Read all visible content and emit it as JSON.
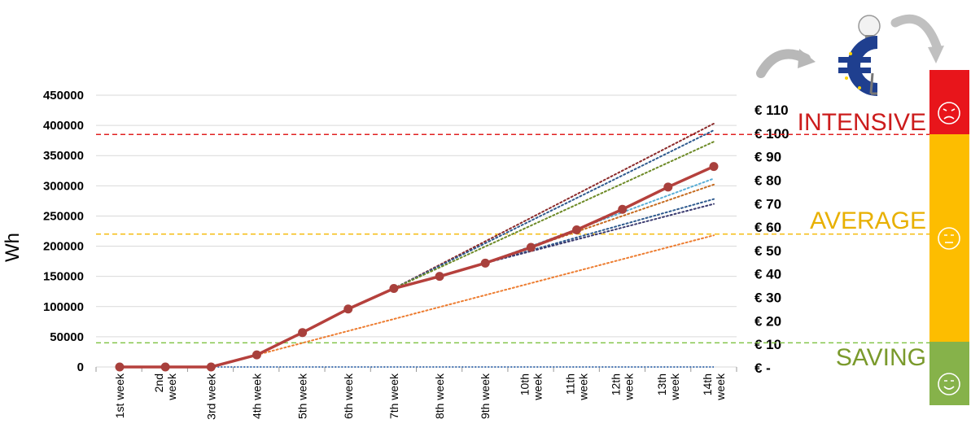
{
  "chart_data": {
    "type": "line",
    "ylabel": "Wh",
    "xlabel": "",
    "ylim": [
      0,
      450000
    ],
    "y_ticks": [
      "450000",
      "400000",
      "350000",
      "300000",
      "250000",
      "200000",
      "150000",
      "100000",
      "50000",
      "0"
    ],
    "categories": [
      "1st week",
      "2nd week",
      "3rd week",
      "4th week",
      "5th week",
      "6th week",
      "7th week",
      "8th week",
      "9th week",
      "10th week",
      "11th week",
      "12th week",
      "13th week",
      "14th week"
    ],
    "series": [
      {
        "name": "",
        "color": "#b5403c",
        "values": [
          0,
          0,
          0,
          20000,
          57000,
          96000,
          130000,
          150000,
          172000,
          198000,
          227000,
          261000,
          298000,
          332000
        ]
      },
      {
        "name": "",
        "color": "#4a78b5",
        "style": "dotted-flat",
        "values": [
          0,
          0,
          0,
          0,
          0,
          0,
          0,
          0,
          0,
          0,
          0,
          0,
          0,
          0
        ]
      }
    ],
    "trend_lines": [
      {
        "color": "#ed7d31",
        "from_week": 4,
        "values_at_end": 218000
      },
      {
        "color": "#8b2a2a",
        "from_week": 7,
        "values_at_end": 403000
      },
      {
        "color": "#2e5a8e",
        "from_week": 7,
        "values_at_end": 392000
      },
      {
        "color": "#6d8a26",
        "from_week": 7,
        "values_at_end": 373000
      },
      {
        "color": "#5aaed6",
        "from_week": 9,
        "values_at_end": 312000
      },
      {
        "color": "#c56a1e",
        "from_week": 9,
        "values_at_end": 302000
      },
      {
        "color": "#2e5a8e",
        "from_week": 9,
        "values_at_end": 278000
      },
      {
        "color": "#3b3b70",
        "from_week": 9,
        "values_at_end": 270000
      }
    ],
    "secondary_axis": {
      "labels": [
        "€ 110",
        "€ 100",
        "€ 90",
        "€ 80",
        "€ 70",
        "€ 60",
        "€ 50",
        "€ 40",
        "€ 30",
        "€ 20",
        "€ 10",
        "€ -"
      ]
    },
    "thresholds": [
      {
        "label": "INTENSIVE",
        "value": 385000,
        "color": "#e02020"
      },
      {
        "label": "AVERAGE",
        "value": 220000,
        "color": "#f5b800"
      },
      {
        "label": "SAVING",
        "value": 40000,
        "color": "#7fc241"
      }
    ],
    "grid": true,
    "legend": "none"
  },
  "zones": {
    "intensive_label": "INTENSIVE",
    "average_label": "AVERAGE",
    "saving_label": "SAVING",
    "intensive_color": "#e8151b",
    "average_color": "#fdbd00",
    "saving_color": "#86b24a",
    "intensive_text_color": "#cc1c1c",
    "average_text_color": "#e8b000",
    "saving_text_color": "#7a9a2c"
  },
  "icons": {
    "mascot": "euro-lightbulb-mascot-icon",
    "arrows": "circular-arrows-icon",
    "sad_face": "sad-face-icon",
    "neutral_face": "neutral-face-icon",
    "happy_face": "happy-face-icon"
  }
}
